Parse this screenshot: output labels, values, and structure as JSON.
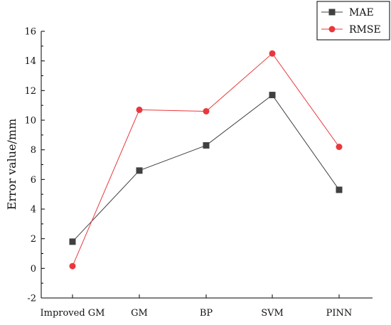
{
  "chart_data": {
    "type": "line",
    "categories": [
      "Improved GM",
      "GM",
      "BP",
      "SVM",
      "PINN"
    ],
    "series": [
      {
        "name": "MAE",
        "values": [
          1.8,
          6.6,
          8.3,
          11.7,
          5.3
        ],
        "color": "#404040",
        "marker": "square"
      },
      {
        "name": "RMSE",
        "values": [
          0.15,
          10.7,
          10.6,
          14.5,
          8.2
        ],
        "color": "#e8383d",
        "marker": "circle"
      }
    ],
    "ylabel": "Error value/mm",
    "xlabel": "",
    "ylim": [
      -2,
      16
    ],
    "yticks": [
      -2,
      0,
      2,
      4,
      6,
      8,
      10,
      12,
      14,
      16
    ],
    "grid": false,
    "legend_position": "top-right"
  }
}
